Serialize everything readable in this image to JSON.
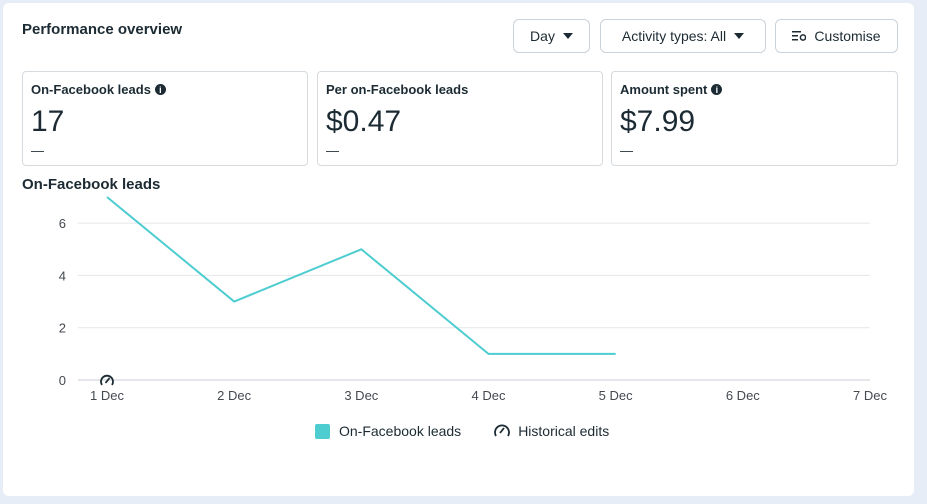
{
  "header": {
    "title": "Performance overview",
    "day_label": "Day",
    "activity_label": "Activity types: All",
    "customise_label": "Customise"
  },
  "metrics": [
    {
      "label": "On-Facebook leads",
      "value": "17",
      "delta": "—",
      "info": true
    },
    {
      "label": "Per on-Facebook leads",
      "value": "$0.47",
      "delta": "—",
      "info": false
    },
    {
      "label": "Amount spent",
      "value": "$7.99",
      "delta": "—",
      "info": true
    }
  ],
  "chart_title": "On-Facebook leads",
  "chart_data": {
    "type": "line",
    "x": [
      "1 Dec",
      "2 Dec",
      "3 Dec",
      "4 Dec",
      "5 Dec",
      "6 Dec",
      "7 Dec"
    ],
    "series": [
      {
        "name": "On-Facebook leads",
        "values": [
          7,
          3,
          5,
          1,
          1,
          null,
          null
        ],
        "color": "#4ecdd1"
      }
    ],
    "yticks": [
      0,
      2,
      4,
      6
    ],
    "ylim": [
      0,
      7
    ],
    "grid": true,
    "historical_edit_markers": [
      "1 Dec"
    ]
  },
  "legend": {
    "series_label": "On-Facebook leads",
    "edits_label": "Historical edits"
  },
  "icons": {
    "info": "info-icon",
    "caret": "caret-down-icon",
    "customise": "customise-icon",
    "historical": "historical-edits-icon"
  }
}
